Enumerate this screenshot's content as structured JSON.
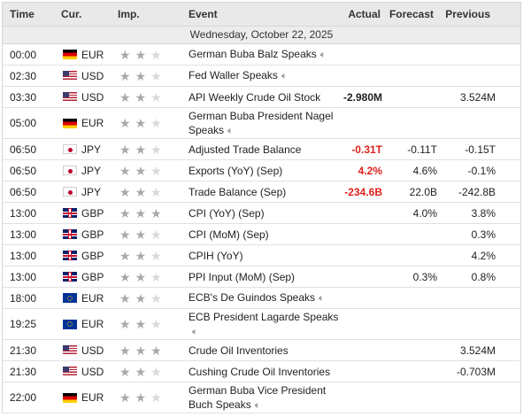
{
  "headers": {
    "time": "Time",
    "currency": "Cur.",
    "importance": "Imp.",
    "event": "Event",
    "actual": "Actual",
    "forecast": "Forecast",
    "previous": "Previous"
  },
  "date_label": "Wednesday, October 22, 2025",
  "rows": [
    {
      "time": "00:00",
      "currency": "EUR",
      "flag": "de",
      "importance": 2,
      "event": "German Buba Balz Speaks",
      "speech": true,
      "actual": "",
      "actual_style": "",
      "forecast": "",
      "previous": ""
    },
    {
      "time": "02:30",
      "currency": "USD",
      "flag": "us",
      "importance": 2,
      "event": "Fed Waller Speaks",
      "speech": true,
      "actual": "",
      "actual_style": "",
      "forecast": "",
      "previous": ""
    },
    {
      "time": "03:30",
      "currency": "USD",
      "flag": "us",
      "importance": 2,
      "event": "API Weekly Crude Oil Stock",
      "speech": false,
      "actual": "-2.980M",
      "actual_style": "bold",
      "forecast": "",
      "previous": "3.524M"
    },
    {
      "time": "05:00",
      "currency": "EUR",
      "flag": "de",
      "importance": 2,
      "event_line1": "German Buba President Nagel",
      "event_line2": "Speaks",
      "speech": true,
      "actual": "",
      "actual_style": "",
      "forecast": "",
      "previous": ""
    },
    {
      "time": "06:50",
      "currency": "JPY",
      "flag": "jp",
      "importance": 2,
      "event": "Adjusted Trade Balance",
      "speech": false,
      "actual": "-0.31T",
      "actual_style": "neg",
      "forecast": "-0.11T",
      "previous": "-0.15T"
    },
    {
      "time": "06:50",
      "currency": "JPY",
      "flag": "jp",
      "importance": 2,
      "event": "Exports (YoY) (Sep)",
      "speech": false,
      "actual": "4.2%",
      "actual_style": "neg",
      "forecast": "4.6%",
      "previous": "-0.1%"
    },
    {
      "time": "06:50",
      "currency": "JPY",
      "flag": "jp",
      "importance": 2,
      "event": "Trade Balance (Sep)",
      "speech": false,
      "actual": "-234.6B",
      "actual_style": "neg",
      "forecast": "22.0B",
      "previous": "-242.8B"
    },
    {
      "time": "13:00",
      "currency": "GBP",
      "flag": "gb",
      "importance": 3,
      "event": "CPI (YoY) (Sep)",
      "speech": false,
      "actual": "",
      "actual_style": "",
      "forecast": "4.0%",
      "previous": "3.8%"
    },
    {
      "time": "13:00",
      "currency": "GBP",
      "flag": "gb",
      "importance": 2,
      "event": "CPI (MoM) (Sep)",
      "speech": false,
      "actual": "",
      "actual_style": "",
      "forecast": "",
      "previous": "0.3%"
    },
    {
      "time": "13:00",
      "currency": "GBP",
      "flag": "gb",
      "importance": 2,
      "event": "CPIH (YoY)",
      "speech": false,
      "actual": "",
      "actual_style": "",
      "forecast": "",
      "previous": "4.2%"
    },
    {
      "time": "13:00",
      "currency": "GBP",
      "flag": "gb",
      "importance": 2,
      "event": "PPI Input (MoM) (Sep)",
      "speech": false,
      "actual": "",
      "actual_style": "",
      "forecast": "0.3%",
      "previous": "0.8%"
    },
    {
      "time": "18:00",
      "currency": "EUR",
      "flag": "eu",
      "importance": 2,
      "event": "ECB's De Guindos Speaks",
      "speech": true,
      "actual": "",
      "actual_style": "",
      "forecast": "",
      "previous": ""
    },
    {
      "time": "19:25",
      "currency": "EUR",
      "flag": "eu",
      "importance": 2,
      "event_line1": "ECB President Lagarde Speaks",
      "event_line2": "",
      "speech": true,
      "actual": "",
      "actual_style": "",
      "forecast": "",
      "previous": ""
    },
    {
      "time": "21:30",
      "currency": "USD",
      "flag": "us",
      "importance": 3,
      "event": "Crude Oil Inventories",
      "speech": false,
      "actual": "",
      "actual_style": "",
      "forecast": "",
      "previous": "3.524M"
    },
    {
      "time": "21:30",
      "currency": "USD",
      "flag": "us",
      "importance": 2,
      "event": "Cushing Crude Oil Inventories",
      "speech": false,
      "actual": "",
      "actual_style": "",
      "forecast": "",
      "previous": "-0.703M"
    },
    {
      "time": "22:00",
      "currency": "EUR",
      "flag": "de",
      "importance": 2,
      "event_line1": "German Buba Vice President",
      "event_line2": "Buch Speaks",
      "speech": true,
      "actual": "",
      "actual_style": "",
      "forecast": "",
      "previous": ""
    }
  ],
  "icons": {
    "star": "star-icon",
    "speech": "speaker-icon"
  },
  "colors": {
    "negative_actual": "#e0201b",
    "header_bg": "#e9e9e9"
  }
}
